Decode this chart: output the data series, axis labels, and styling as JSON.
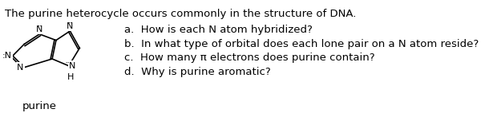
{
  "title_text": "The purine heterocycle occurs commonly in the structure of DNA.",
  "questions": [
    "a.  How is each N atom hybridized?",
    "b.  In what type of orbital does each lone pair on a N atom reside?",
    "c.  How many π electrons does purine contain?",
    "d.  Why is purine aromatic?"
  ],
  "label_purine": "purine",
  "bg_color": "#ffffff",
  "text_color": "#000000",
  "font_size_title": 9.5,
  "font_size_questions": 9.5,
  "font_size_label": 9.5,
  "font_size_struct": 7.5
}
